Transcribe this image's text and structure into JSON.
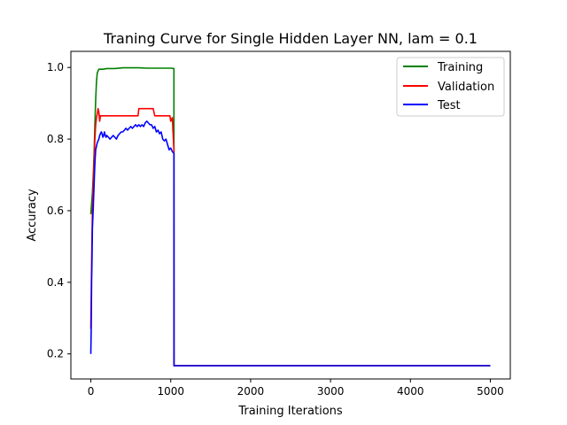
{
  "chart_data": {
    "type": "line",
    "title": "Traning Curve for Single Hidden Layer NN, lam = 0.1",
    "xlabel": "Training Iterations",
    "ylabel": "Accuracy",
    "xlim": [
      -250,
      5250
    ],
    "ylim": [
      0.13,
      1.045
    ],
    "xticks": [
      0,
      1000,
      2000,
      3000,
      4000,
      5000
    ],
    "xtick_labels": [
      "0",
      "1000",
      "2000",
      "3000",
      "4000",
      "5000"
    ],
    "yticks": [
      0.2,
      0.4,
      0.6,
      0.8,
      1.0
    ],
    "ytick_labels": [
      "0.2",
      "0.4",
      "0.6",
      "0.8",
      "1.0"
    ],
    "grid": false,
    "legend_position": "upper-right",
    "series": [
      {
        "name": "Training",
        "color": "#008000",
        "x": [
          0,
          10,
          20,
          30,
          40,
          50,
          60,
          70,
          80,
          90,
          100,
          120,
          150,
          200,
          300,
          400,
          500,
          600,
          700,
          800,
          900,
          1000,
          1040,
          1041,
          1050,
          2000,
          3000,
          4000,
          5000
        ],
        "y": [
          0.59,
          0.62,
          0.65,
          0.7,
          0.76,
          0.84,
          0.91,
          0.96,
          0.985,
          0.99,
          0.995,
          0.995,
          0.995,
          0.997,
          0.997,
          0.999,
          0.999,
          0.999,
          0.998,
          0.998,
          0.998,
          0.998,
          0.997,
          0.167,
          0.167,
          0.167,
          0.167,
          0.167,
          0.167
        ]
      },
      {
        "name": "Validation",
        "color": "#ff0000",
        "x": [
          0,
          10,
          20,
          30,
          40,
          50,
          60,
          70,
          80,
          90,
          100,
          110,
          120,
          130,
          140,
          200,
          300,
          400,
          500,
          590,
          600,
          700,
          780,
          800,
          900,
          990,
          1000,
          1020,
          1040,
          1041,
          1050,
          2000,
          3000,
          4000,
          5000
        ],
        "y": [
          0.27,
          0.45,
          0.6,
          0.68,
          0.74,
          0.8,
          0.84,
          0.86,
          0.87,
          0.885,
          0.875,
          0.85,
          0.865,
          0.865,
          0.865,
          0.865,
          0.865,
          0.865,
          0.865,
          0.865,
          0.885,
          0.885,
          0.885,
          0.865,
          0.865,
          0.865,
          0.85,
          0.86,
          0.77,
          0.167,
          0.167,
          0.167,
          0.167,
          0.167,
          0.167
        ]
      },
      {
        "name": "Test",
        "color": "#0000ff",
        "x": [
          0,
          5,
          10,
          15,
          20,
          25,
          30,
          35,
          40,
          45,
          50,
          55,
          60,
          70,
          80,
          90,
          100,
          110,
          120,
          130,
          140,
          150,
          160,
          170,
          180,
          190,
          200,
          220,
          240,
          260,
          280,
          300,
          320,
          340,
          360,
          380,
          400,
          420,
          440,
          460,
          480,
          500,
          520,
          540,
          560,
          580,
          600,
          620,
          640,
          660,
          680,
          700,
          720,
          740,
          760,
          780,
          800,
          820,
          840,
          860,
          880,
          900,
          920,
          940,
          960,
          980,
          1000,
          1020,
          1040,
          1041,
          1050,
          2000,
          3000,
          4000,
          5000
        ],
        "y": [
          0.2,
          0.28,
          0.4,
          0.47,
          0.55,
          0.58,
          0.61,
          0.64,
          0.67,
          0.7,
          0.73,
          0.75,
          0.77,
          0.78,
          0.79,
          0.795,
          0.8,
          0.81,
          0.815,
          0.82,
          0.815,
          0.805,
          0.81,
          0.82,
          0.81,
          0.805,
          0.81,
          0.805,
          0.8,
          0.805,
          0.81,
          0.805,
          0.8,
          0.81,
          0.815,
          0.82,
          0.82,
          0.825,
          0.83,
          0.825,
          0.83,
          0.835,
          0.83,
          0.835,
          0.84,
          0.835,
          0.84,
          0.835,
          0.84,
          0.835,
          0.845,
          0.85,
          0.845,
          0.84,
          0.84,
          0.83,
          0.835,
          0.82,
          0.825,
          0.815,
          0.82,
          0.8,
          0.795,
          0.8,
          0.785,
          0.77,
          0.775,
          0.765,
          0.76,
          0.167,
          0.167,
          0.167,
          0.167,
          0.167,
          0.167
        ]
      }
    ]
  }
}
